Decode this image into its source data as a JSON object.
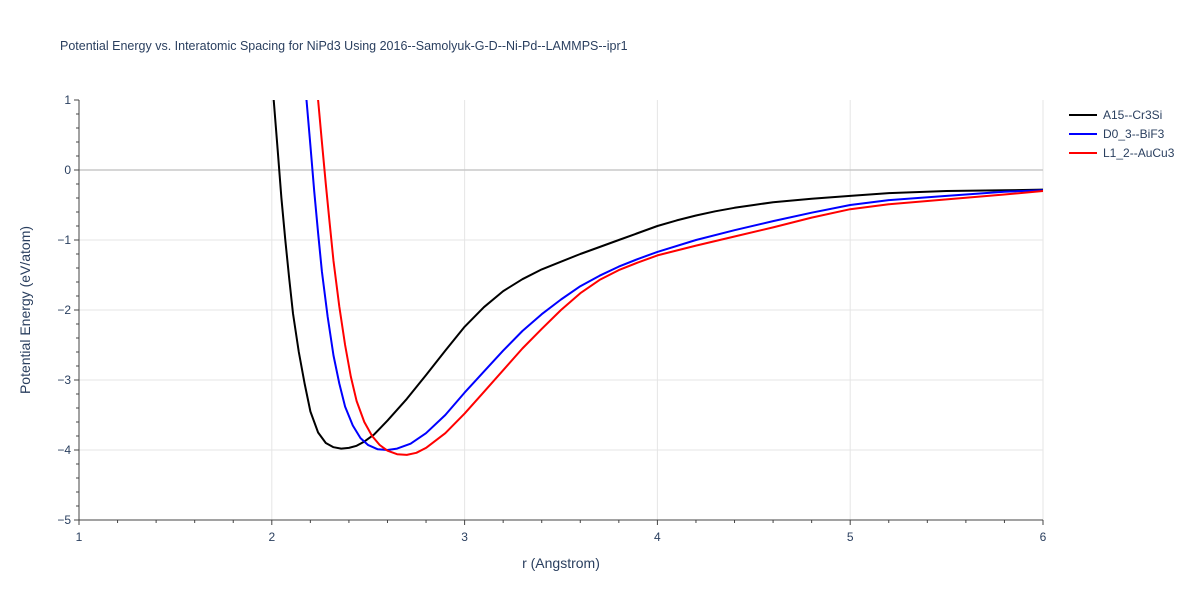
{
  "chart_data": {
    "type": "line",
    "title": "Potential Energy vs. Interatomic Spacing for NiPd3 Using 2016--Samolyuk-G-D--Ni-Pd--LAMMPS--ipr1",
    "xlabel": "r (Angstrom)",
    "ylabel": "Potential Energy (eV/atom)",
    "xlim": [
      1,
      6
    ],
    "ylim": [
      -5,
      1
    ],
    "x_ticks": [
      1,
      2,
      3,
      4,
      5,
      6
    ],
    "x_tick_labels": [
      "1",
      "2",
      "3",
      "4",
      "5",
      "6"
    ],
    "y_ticks": [
      1,
      0,
      -1,
      -2,
      -3,
      -4,
      -5
    ],
    "y_tick_labels": [
      "1",
      "0",
      "−1",
      "−2",
      "−3",
      "−4",
      "−5"
    ],
    "grid": true,
    "legend_position": "top-right",
    "series": [
      {
        "name": "A15--Cr3Si",
        "color": "#000000",
        "x": [
          2.01,
          2.03,
          2.05,
          2.07,
          2.09,
          2.11,
          2.14,
          2.17,
          2.2,
          2.24,
          2.28,
          2.32,
          2.36,
          2.4,
          2.44,
          2.48,
          2.53,
          2.6,
          2.7,
          2.8,
          2.9,
          3.0,
          3.1,
          3.2,
          3.3,
          3.4,
          3.5,
          3.6,
          3.7,
          3.8,
          3.9,
          4.0,
          4.1,
          4.2,
          4.3,
          4.4,
          4.5,
          4.6,
          4.8,
          5.0,
          5.2,
          5.5,
          5.8,
          6.0
        ],
        "y": [
          1.0,
          0.3,
          -0.4,
          -1.0,
          -1.55,
          -2.05,
          -2.6,
          -3.05,
          -3.45,
          -3.75,
          -3.9,
          -3.96,
          -3.98,
          -3.97,
          -3.94,
          -3.88,
          -3.78,
          -3.58,
          -3.27,
          -2.93,
          -2.58,
          -2.24,
          -1.96,
          -1.73,
          -1.56,
          -1.42,
          -1.31,
          -1.2,
          -1.1,
          -1.0,
          -0.9,
          -0.8,
          -0.72,
          -0.65,
          -0.59,
          -0.54,
          -0.5,
          -0.46,
          -0.41,
          -0.37,
          -0.33,
          -0.3,
          -0.29,
          -0.28
        ]
      },
      {
        "name": "D0_3--BiF3",
        "color": "#0000ff",
        "x": [
          2.18,
          2.2,
          2.22,
          2.24,
          2.26,
          2.29,
          2.32,
          2.35,
          2.38,
          2.42,
          2.46,
          2.5,
          2.55,
          2.6,
          2.65,
          2.72,
          2.8,
          2.9,
          3.0,
          3.1,
          3.2,
          3.3,
          3.4,
          3.5,
          3.6,
          3.7,
          3.8,
          3.9,
          4.0,
          4.2,
          4.4,
          4.6,
          4.8,
          5.0,
          5.2,
          5.5,
          5.8,
          6.0
        ],
        "y": [
          1.0,
          0.35,
          -0.3,
          -0.9,
          -1.45,
          -2.1,
          -2.65,
          -3.05,
          -3.38,
          -3.65,
          -3.83,
          -3.93,
          -3.99,
          -4.0,
          -3.98,
          -3.91,
          -3.76,
          -3.5,
          -3.18,
          -2.88,
          -2.58,
          -2.3,
          -2.06,
          -1.85,
          -1.66,
          -1.51,
          -1.38,
          -1.27,
          -1.17,
          -1.0,
          -0.86,
          -0.73,
          -0.61,
          -0.5,
          -0.43,
          -0.37,
          -0.31,
          -0.29
        ]
      },
      {
        "name": "L1_2--AuCu3",
        "color": "#ff0000",
        "x": [
          2.24,
          2.26,
          2.28,
          2.3,
          2.32,
          2.35,
          2.38,
          2.41,
          2.44,
          2.48,
          2.52,
          2.56,
          2.6,
          2.65,
          2.7,
          2.75,
          2.8,
          2.9,
          3.0,
          3.1,
          3.2,
          3.3,
          3.4,
          3.5,
          3.6,
          3.7,
          3.8,
          3.9,
          4.0,
          4.2,
          4.4,
          4.6,
          4.8,
          5.0,
          5.2,
          5.5,
          5.8,
          6.0
        ],
        "y": [
          1.0,
          0.4,
          -0.2,
          -0.75,
          -1.3,
          -1.95,
          -2.5,
          -2.95,
          -3.3,
          -3.6,
          -3.8,
          -3.93,
          -4.01,
          -4.06,
          -4.07,
          -4.04,
          -3.97,
          -3.76,
          -3.48,
          -3.17,
          -2.86,
          -2.55,
          -2.27,
          -2.0,
          -1.76,
          -1.57,
          -1.43,
          -1.32,
          -1.22,
          -1.08,
          -0.95,
          -0.82,
          -0.68,
          -0.56,
          -0.49,
          -0.42,
          -0.35,
          -0.3
        ]
      }
    ]
  }
}
